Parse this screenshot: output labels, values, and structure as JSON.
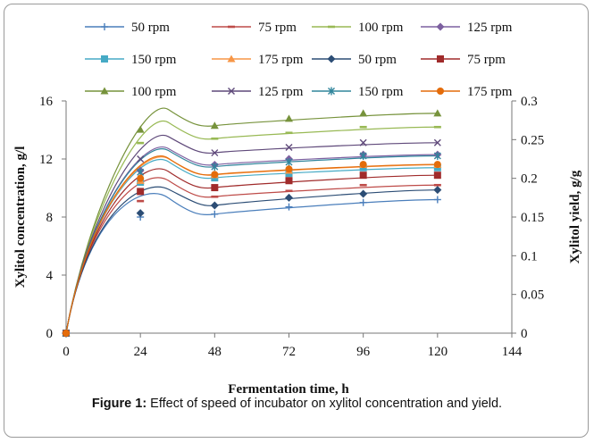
{
  "figure": {
    "caption_label": "Figure 1:",
    "caption_text": " Effect of speed of incubator on xylitol concentration and yield."
  },
  "chart_data": {
    "type": "scatter",
    "xlabel": "Fermentation time, h",
    "ylabel_left": "Xylitol concentration, g/l",
    "ylabel_right": "Xylitol yield, g/g",
    "xlim": [
      0,
      144
    ],
    "x_ticks": [
      "0",
      "24",
      "48",
      "72",
      "96",
      "120",
      "144"
    ],
    "ylim_left": [
      0,
      16
    ],
    "y_ticks_left": [
      "0",
      "4",
      "8",
      "12",
      "16"
    ],
    "ylim_right": [
      0,
      0.3
    ],
    "y_ticks_right": [
      "0",
      "0.05",
      "0.1",
      "0.15",
      "0.2",
      "0.25",
      "0.3"
    ],
    "grid": false,
    "legend_placement": "top",
    "series": [
      {
        "name": "50 rpm",
        "axis": "left",
        "color": "#4a7ebb",
        "marker": "plus",
        "x": [
          0,
          24,
          48,
          72,
          96,
          120
        ],
        "y": [
          0,
          8.0,
          8.2,
          8.7,
          9.0,
          9.2
        ]
      },
      {
        "name": "75 rpm",
        "axis": "left",
        "color": "#be4b48",
        "marker": "dash",
        "x": [
          0,
          24,
          48,
          72,
          96,
          120
        ],
        "y": [
          0,
          9.1,
          9.4,
          9.8,
          10.2,
          10.2
        ]
      },
      {
        "name": "100 rpm",
        "axis": "left",
        "color": "#98b954",
        "marker": "dash",
        "x": [
          0,
          24,
          48,
          72,
          96,
          120
        ],
        "y": [
          0,
          13.1,
          13.4,
          13.8,
          14.2,
          14.2
        ]
      },
      {
        "name": "125 rpm",
        "axis": "left",
        "color": "#7d60a0",
        "marker": "diamond",
        "x": [
          0,
          24,
          48,
          72,
          96,
          120
        ],
        "y": [
          0,
          11.2,
          11.6,
          12.0,
          12.3,
          12.3
        ]
      },
      {
        "name": "150 rpm",
        "axis": "left",
        "color": "#46aac5",
        "marker": "square",
        "x": [
          0,
          24,
          48,
          72,
          96,
          120
        ],
        "y": [
          0,
          10.4,
          10.7,
          11.0,
          11.4,
          11.4
        ]
      },
      {
        "name": "175 rpm",
        "axis": "left",
        "color": "#f79646",
        "marker": "triangle",
        "x": [
          0,
          24,
          48,
          72,
          96,
          120
        ],
        "y": [
          0,
          10.5,
          10.9,
          11.2,
          11.6,
          11.6
        ]
      },
      {
        "name": "50 rpm",
        "axis": "right",
        "color": "#2c4d75",
        "marker": "diamond",
        "x": [
          0,
          24,
          48,
          72,
          96,
          120
        ],
        "y": [
          0,
          0.155,
          0.165,
          0.175,
          0.18,
          0.185
        ]
      },
      {
        "name": "75 rpm",
        "axis": "right",
        "color": "#a02b2b",
        "marker": "square",
        "x": [
          0,
          24,
          48,
          72,
          96,
          120
        ],
        "y": [
          0,
          0.183,
          0.188,
          0.197,
          0.204,
          0.204
        ]
      },
      {
        "name": "100 rpm",
        "axis": "right",
        "color": "#77933c",
        "marker": "triangle",
        "x": [
          0,
          24,
          48,
          72,
          96,
          120
        ],
        "y": [
          0,
          0.263,
          0.268,
          0.277,
          0.284,
          0.284
        ]
      },
      {
        "name": "125 rpm",
        "axis": "right",
        "color": "#5f497a",
        "marker": "cross",
        "x": [
          0,
          24,
          48,
          72,
          96,
          120
        ],
        "y": [
          0,
          0.225,
          0.233,
          0.24,
          0.246,
          0.246
        ]
      },
      {
        "name": "150 rpm",
        "axis": "right",
        "color": "#31859c",
        "marker": "asterisk",
        "x": [
          0,
          24,
          48,
          72,
          96,
          120
        ],
        "y": [
          0,
          0.208,
          0.215,
          0.221,
          0.229,
          0.229
        ]
      },
      {
        "name": "175 rpm",
        "axis": "right",
        "color": "#e46c0a",
        "marker": "circle",
        "x": [
          0,
          24,
          48,
          72,
          96,
          120
        ],
        "y": [
          0,
          0.2,
          0.205,
          0.212,
          0.218,
          0.218
        ]
      }
    ]
  }
}
